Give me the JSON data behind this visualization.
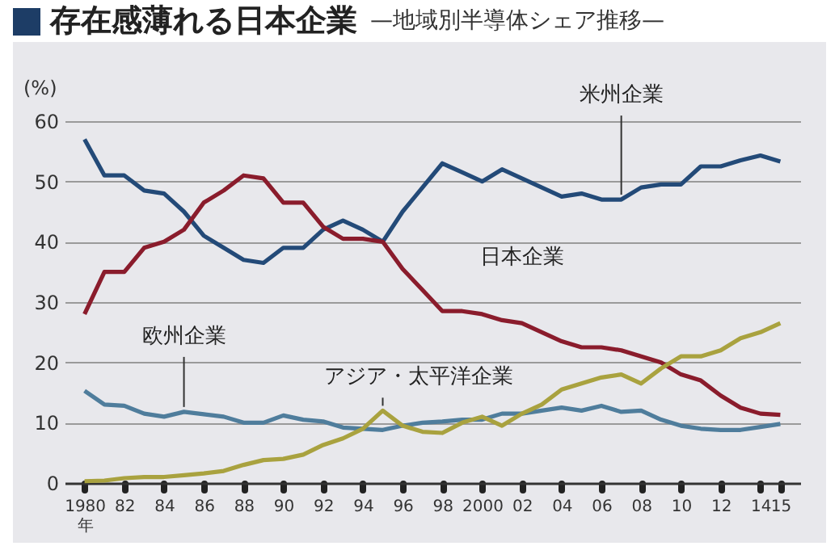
{
  "chart_data": {
    "type": "line",
    "title": "存在感薄れる日本企業",
    "subtitle": "—地域別半導体シェア推移—",
    "ylabel": "(%)",
    "x": [
      1980,
      1981,
      1982,
      1983,
      1984,
      1985,
      1986,
      1987,
      1988,
      1989,
      1990,
      1991,
      1992,
      1993,
      1994,
      1995,
      1996,
      1997,
      1998,
      1999,
      2000,
      2001,
      2002,
      2003,
      2004,
      2005,
      2006,
      2007,
      2008,
      2009,
      2010,
      2011,
      2012,
      2013,
      2014,
      2015
    ],
    "series": [
      {
        "name": "米州企業",
        "color": "#234a78",
        "values": [
          57,
          51,
          51,
          48.5,
          48,
          45,
          41,
          39,
          37,
          36.5,
          39,
          39,
          42,
          43.5,
          42,
          40,
          45,
          49,
          53,
          51.5,
          50,
          52,
          50.5,
          49,
          47.5,
          48,
          47,
          47,
          49,
          49.5,
          49.5,
          52.5,
          52.5,
          53.5,
          54.3,
          53.3
        ]
      },
      {
        "name": "日本企業",
        "color": "#8a1c2c",
        "values": [
          28,
          35,
          35,
          39,
          40,
          42,
          46.5,
          48.5,
          51,
          50.5,
          46.5,
          46.5,
          42.5,
          40.5,
          40.5,
          40,
          35.5,
          32,
          28.5,
          28.5,
          28,
          27,
          26.5,
          25,
          23.5,
          22.5,
          22.5,
          22,
          21,
          20,
          18,
          17,
          14.5,
          12.5,
          11.5,
          11.3
        ]
      },
      {
        "name": "欧州企業",
        "color": "#4f7d9c",
        "values": [
          15.3,
          13,
          12.8,
          11.5,
          11,
          11.8,
          11.4,
          11,
          10,
          10,
          11.2,
          10.5,
          10.2,
          9.2,
          9,
          8.8,
          9.5,
          10,
          10.2,
          10.5,
          10.5,
          11.5,
          11.5,
          12,
          12.5,
          12,
          12.8,
          11.8,
          12,
          10.5,
          9.5,
          9,
          8.8,
          8.8,
          9.3,
          9.8
        ]
      },
      {
        "name": "アジア・太平洋企業",
        "color": "#a9a23f",
        "values": [
          0.3,
          0.4,
          0.8,
          1,
          1,
          1.3,
          1.6,
          2,
          3,
          3.8,
          4,
          4.7,
          6.3,
          7.4,
          9,
          12,
          9.5,
          8.5,
          8.3,
          10,
          11,
          9.5,
          11.5,
          13,
          15.5,
          16.5,
          17.5,
          18,
          16.5,
          19,
          21,
          21,
          22,
          24,
          25,
          26.5
        ]
      }
    ],
    "xlim": [
      1979,
      2016
    ],
    "xticks": [
      {
        "value": 1980,
        "label": "1980\n年"
      },
      {
        "value": 1982,
        "label": "82"
      },
      {
        "value": 1984,
        "label": "84"
      },
      {
        "value": 1986,
        "label": "86"
      },
      {
        "value": 1988,
        "label": "88"
      },
      {
        "value": 1990,
        "label": "90"
      },
      {
        "value": 1992,
        "label": "92"
      },
      {
        "value": 1994,
        "label": "94"
      },
      {
        "value": 1996,
        "label": "96"
      },
      {
        "value": 1998,
        "label": "98"
      },
      {
        "value": 2000,
        "label": "2000"
      },
      {
        "value": 2002,
        "label": "02"
      },
      {
        "value": 2004,
        "label": "04"
      },
      {
        "value": 2006,
        "label": "06"
      },
      {
        "value": 2008,
        "label": "08"
      },
      {
        "value": 2010,
        "label": "10"
      },
      {
        "value": 2012,
        "label": "12"
      },
      {
        "value": 2014,
        "label": "14"
      },
      {
        "value": 2015,
        "label": "15"
      }
    ],
    "ylim": [
      0,
      60
    ],
    "yticks": [
      0,
      10,
      20,
      30,
      40,
      50,
      60
    ],
    "grid": "y",
    "marker": "none",
    "line_style": "solid"
  }
}
